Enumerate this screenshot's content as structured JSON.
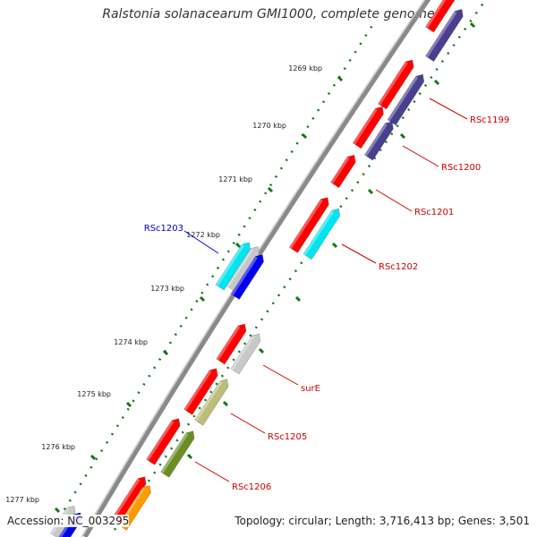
{
  "title": "Ralstonia solanacearum GMI1000, complete genome",
  "footer": {
    "accession": "Accession: NC_003295",
    "topology": "Topology: circular; Length: 3,716,413 bp; Genes: 3,501"
  },
  "ticks": [
    "1269 kbp",
    "1270 kbp",
    "1271 kbp",
    "1272 kbp",
    "1273 kbp",
    "1274 kbp",
    "1275 kbp",
    "1276 kbp",
    "1277 kbp"
  ],
  "gene_labels": [
    {
      "text": "RSc1199",
      "color": "#cc0000"
    },
    {
      "text": "RSc1200",
      "color": "#cc0000"
    },
    {
      "text": "RSc1201",
      "color": "#cc0000"
    },
    {
      "text": "RSc1202",
      "color": "#cc0000"
    },
    {
      "text": "RSc1203",
      "color": "#0000cc"
    },
    {
      "text": "surE",
      "color": "#cc0000"
    },
    {
      "text": "RSc1205",
      "color": "#cc0000"
    },
    {
      "text": "RSc1206",
      "color": "#cc0000"
    }
  ],
  "colors": {
    "red": "#ff0000",
    "purple": "#4a3f8f",
    "cyan": "#00e5f0",
    "blue": "#0000ee",
    "grey": "#c8c8c8",
    "khaki": "#bdbd7a",
    "olive": "#6b8e23",
    "orange": "#ff9900",
    "backbone": "#8a8a8a",
    "tick": "#117711"
  }
}
